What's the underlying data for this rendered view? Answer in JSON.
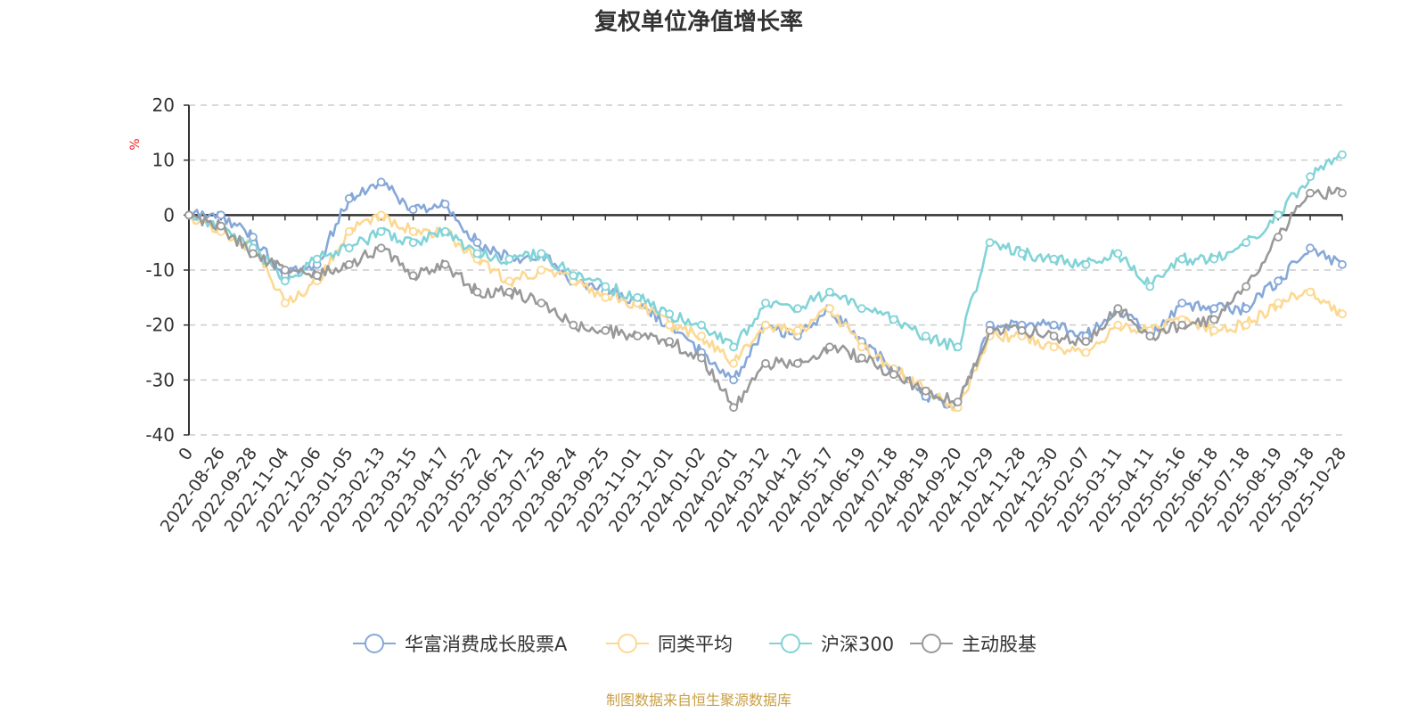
{
  "chart_data": {
    "type": "line",
    "title": "复权单位净值增长率",
    "ylabel": "%",
    "xlabel": "",
    "ylim": [
      -40,
      20
    ],
    "yticks": [
      20,
      10,
      0,
      -10,
      -20,
      -30,
      -40
    ],
    "grid": true,
    "legend_position": "bottom",
    "categories": [
      "0",
      "2022-08-26",
      "2022-09-28",
      "2022-11-04",
      "2022-12-06",
      "2023-01-05",
      "2023-02-13",
      "2023-03-15",
      "2023-04-17",
      "2023-05-22",
      "2023-06-21",
      "2023-07-25",
      "2023-08-24",
      "2023-09-25",
      "2023-11-01",
      "2023-12-01",
      "2024-01-02",
      "2024-02-01",
      "2024-03-12",
      "2024-04-12",
      "2024-05-17",
      "2024-06-19",
      "2024-07-18",
      "2024-08-19",
      "2024-09-20",
      "2024-10-29",
      "2024-11-28",
      "2024-12-30",
      "2025-02-07",
      "2025-03-11",
      "2025-04-11",
      "2025-05-16",
      "2025-06-18",
      "2025-07-18",
      "2025-08-19",
      "2025-09-18",
      "2025-10-28"
    ],
    "series": [
      {
        "name": "华富消费成长股票A",
        "color": "#86a8d9",
        "values": [
          0,
          0,
          -4,
          -11,
          -9,
          3,
          6,
          1,
          2,
          -5,
          -8,
          -7,
          -12,
          -14,
          -16,
          -20,
          -25,
          -30,
          -20,
          -22,
          -17,
          -23,
          -28,
          -33,
          -35,
          -20,
          -20,
          -20,
          -22,
          -17,
          -22,
          -16,
          -17,
          -17,
          -12,
          -6,
          -9
        ]
      },
      {
        "name": "同类平均",
        "color": "#fcd993",
        "values": [
          0,
          -3,
          -6,
          -16,
          -12,
          -3,
          0,
          -3,
          -3,
          -8,
          -12,
          -10,
          -12,
          -15,
          -16,
          -20,
          -22,
          -27,
          -20,
          -21,
          -17,
          -24,
          -28,
          -32,
          -35,
          -22,
          -22,
          -24,
          -25,
          -20,
          -21,
          -19,
          -21,
          -20,
          -16,
          -14,
          -18
        ]
      },
      {
        "name": "沪深300",
        "color": "#82d3d7",
        "values": [
          0,
          -2,
          -6,
          -12,
          -8,
          -6,
          -3,
          -5,
          -3,
          -7,
          -8,
          -7,
          -11,
          -13,
          -15,
          -18,
          -20,
          -24,
          -16,
          -17,
          -14,
          -17,
          -19,
          -22,
          -24,
          -5,
          -7,
          -8,
          -9,
          -7,
          -13,
          -8,
          -8,
          -5,
          0,
          7,
          11
        ]
      },
      {
        "name": "主动股基",
        "color": "#999999",
        "values": [
          0,
          -2,
          -7,
          -10,
          -11,
          -9,
          -6,
          -11,
          -9,
          -14,
          -14,
          -16,
          -20,
          -21,
          -22,
          -23,
          -26,
          -35,
          -27,
          -27,
          -24,
          -26,
          -29,
          -32,
          -34,
          -21,
          -21,
          -22,
          -23,
          -17,
          -22,
          -20,
          -19,
          -13,
          -4,
          4,
          4
        ]
      }
    ]
  },
  "source_note": "制图数据来自恒生聚源数据库",
  "colors": {
    "axis": "#333333",
    "grid": "#cccccc",
    "ylabel": "#ee2222",
    "source": "#c8a046"
  }
}
